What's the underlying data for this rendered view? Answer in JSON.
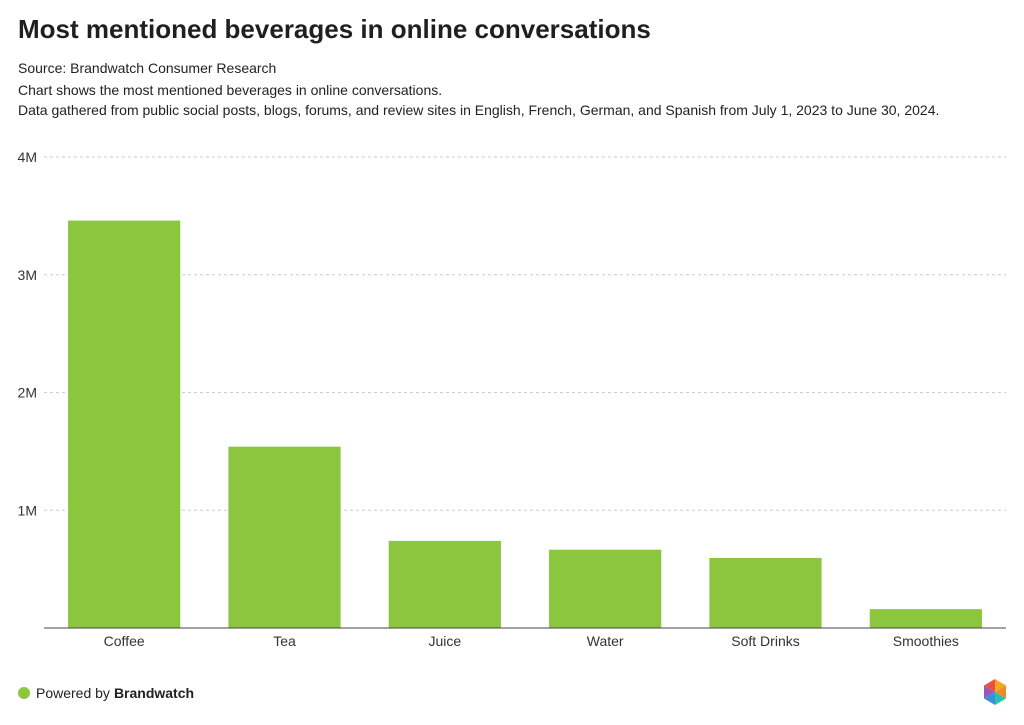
{
  "title": "Most mentioned beverages in online conversations",
  "source": "Source: Brandwatch Consumer Research",
  "description_line1": "Chart shows the most mentioned beverages in online conversations.",
  "description_line2": "Data gathered from public social posts, blogs, forums, and review sites in English, French, German, and Spanish from July 1, 2023 to June 30, 2024.",
  "footer": {
    "powered_by": "Powered by",
    "brand": "Brandwatch"
  },
  "colors": {
    "bar": "#8cc63f",
    "grid": "#cccccc",
    "axis": "#444444"
  },
  "chart_data": {
    "type": "bar",
    "categories": [
      "Coffee",
      "Tea",
      "Juice",
      "Water",
      "Soft Drinks",
      "Smoothies"
    ],
    "values": [
      3460000,
      1540000,
      740000,
      665000,
      595000,
      160000
    ],
    "ylim": [
      0,
      4000000
    ],
    "yticks": [
      1000000,
      2000000,
      3000000,
      4000000
    ],
    "ytick_labels": [
      "1M",
      "2M",
      "3M",
      "4M"
    ],
    "xlabel": "",
    "ylabel": "",
    "grid": true
  }
}
